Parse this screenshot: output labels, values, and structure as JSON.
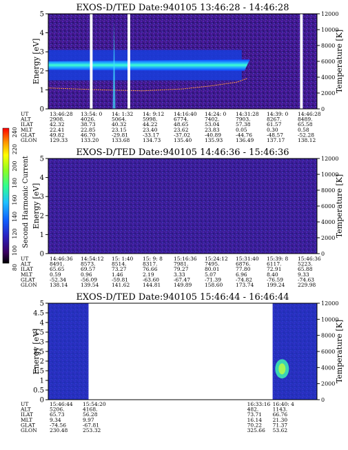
{
  "chart_data": [
    {
      "type": "heatmap",
      "title": "EXOS-D/TED   Date:940105  13:46:28 - 14:46:28",
      "ylabel": "Energy [eV]",
      "y2label": "Temperature [K]",
      "ylim": [
        0,
        5
      ],
      "y2lim": [
        0,
        12000
      ],
      "yticks": [
        "0",
        "1",
        "2",
        "3",
        "4",
        "5"
      ],
      "y2ticks": [
        "0",
        "2000",
        "4000",
        "6000",
        "8000",
        "10000",
        "12000"
      ],
      "ephemeris": {
        "labels": [
          "UT",
          "ALT",
          "ILAT",
          "MLT",
          "GLAT",
          "GLON"
        ],
        "columns": [
          [
            "13:46:28",
            "2908.",
            "42.32",
            "22.41",
            "49.82",
            "129.33"
          ],
          [
            "13:54: 0",
            "4026.",
            "38.73",
            "22.85",
            "46.70",
            "133.20"
          ],
          [
            "14: 1:32",
            "5064.",
            "40.32",
            "23.15",
            "-29.81",
            "133.68"
          ],
          [
            "14: 9:12",
            "5998.",
            "44.22",
            "23.40",
            "-33.17",
            "134.73"
          ],
          [
            "14:16:40",
            "6774.",
            "48.65",
            "23.62",
            "-37.02",
            "135.40"
          ],
          [
            "14:24: 0",
            "7402.",
            "53.04",
            "23.83",
            "-40.89",
            "135.93"
          ],
          [
            "14:31:28",
            "7903.",
            "57.38",
            "0.05",
            "-44.76",
            "136.49"
          ],
          [
            "14:39: 0",
            "8267.",
            "61.57",
            "0.30",
            "-48.57",
            "137.17"
          ],
          [
            "14:46:28",
            "8489.",
            "65.58",
            "0.58",
            "-52.28",
            "138.12"
          ]
        ]
      },
      "data_gaps_frac": [
        [
          0.155,
          0.165
        ],
        [
          0.295,
          0.305
        ],
        [
          0.937,
          0.947
        ]
      ]
    },
    {
      "type": "heatmap",
      "title": "EXOS-D/TED   Date:940105  14:46:36 - 15:46:36",
      "ylabel": "Energy [eV]",
      "y2label": "Temperature [K]",
      "ylim": [
        0,
        5
      ],
      "y2lim": [
        0,
        12000
      ],
      "yticks": [
        "0",
        "1",
        "2",
        "3",
        "4",
        "5"
      ],
      "y2ticks": [
        "0",
        "2000",
        "4000",
        "6000",
        "8000",
        "10000",
        "12000"
      ],
      "ephemeris": {
        "labels": [
          "UT",
          "ALT",
          "ILAT",
          "MLT",
          "GLAT",
          "GLON"
        ],
        "columns": [
          [
            "14:46:36",
            "8491.",
            "65.65",
            "0.59",
            "-52.34",
            "138.14"
          ],
          [
            "14:54:12",
            "8573.",
            "69.57",
            "0.96",
            "-56.09",
            "139.54"
          ],
          [
            "15: 1:40",
            "8514.",
            "73.27",
            "1.46",
            "-59.81",
            "141.62"
          ],
          [
            "15: 9: 8",
            "8317.",
            "76.66",
            "2.19",
            "-63.60",
            "144.81"
          ],
          [
            "15:16:36",
            "7981.",
            "79.27",
            "3.33",
            "-67.47",
            "149.89"
          ],
          [
            "15:24:12",
            "7495.",
            "80.01",
            "5.07",
            "-71.39",
            "158.60"
          ],
          [
            "15:31:40",
            "6876.",
            "77.80",
            "6.96",
            "-74.82",
            "173.74"
          ],
          [
            "15:39: 8",
            "6117.",
            "72.91",
            "8.40",
            "-76.59",
            "199.24"
          ],
          [
            "15:46:36",
            "5223.",
            "65.88",
            "9.33",
            "-74.63",
            "229.98"
          ]
        ]
      }
    },
    {
      "type": "heatmap",
      "title": "EXOS-D/TED   Date:940105  15:46:44 - 16:46:44",
      "ylabel": "Energy [eV]",
      "y2label": "Temperature [K]",
      "ylim": [
        0,
        5
      ],
      "y2lim": [
        0,
        12000
      ],
      "yticks": [
        "0",
        "0.5",
        "1",
        "1.5",
        "2",
        "2.5",
        "3",
        "3.5",
        "4",
        "4.5",
        "5"
      ],
      "y2ticks": [
        "0",
        "2000",
        "4000",
        "6000",
        "8000",
        "10000",
        "12000"
      ],
      "ephemeris": {
        "labels": [
          "UT",
          "ALT",
          "ILAT",
          "MLT",
          "GLAT",
          "GLON"
        ],
        "columns": [
          [
            "15:46:44",
            "5206.",
            "65.73",
            "9.34",
            "-74.56",
            "230.48"
          ],
          [
            "15:54:20",
            "4168.",
            "56.28",
            "9.97",
            "-67.81",
            "253.32"
          ],
          [
            "16:33:16",
            "482.",
            "73.71",
            "16.14",
            "70.22",
            "325.66"
          ],
          [
            "16:40: 4",
            "1143.",
            "66.76",
            "21.30",
            "71.37",
            "53.62"
          ]
        ]
      },
      "data_coverage_frac": [
        [
          0,
          0.15
        ],
        [
          0.835,
          1
        ]
      ]
    }
  ],
  "colorbar": {
    "label": "Second Harmonic Current",
    "ticks": [
      "80",
      "100",
      "120",
      "140",
      "160",
      "180",
      "200",
      "220",
      "240"
    ],
    "colors": [
      "#000000",
      "#3a0060",
      "#2a20c0",
      "#1060ff",
      "#20c0ff",
      "#30ff90",
      "#90ff20",
      "#ffff00",
      "#ff9000",
      "#ff0000"
    ]
  }
}
